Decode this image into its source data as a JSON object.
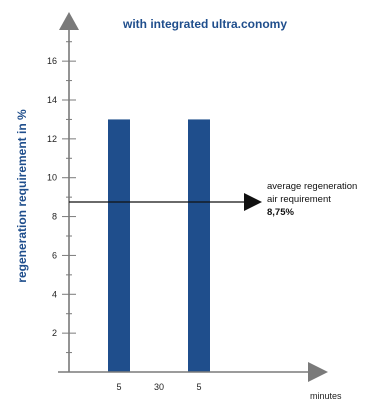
{
  "chart_data": {
    "type": "bar",
    "title": "with integrated ultra.conomy",
    "ylabel": "regeneration requirement in %",
    "xlabel": "minutes",
    "ylim": [
      0,
      17.5
    ],
    "yticks": [
      2,
      4,
      6,
      8,
      10,
      12,
      14,
      16
    ],
    "categories": [
      "5",
      "30",
      "5"
    ],
    "values": [
      13,
      null,
      13
    ],
    "reference_line": {
      "value": 8.75,
      "label_lines": [
        "average regeneration",
        "air requirement",
        "8,75%"
      ]
    },
    "grid": false,
    "legend": "none"
  },
  "colors": {
    "bar": "#1f4e8c",
    "axis": "#7a7a7a",
    "title": "#1f4e8c",
    "reference_line": "#111111"
  }
}
